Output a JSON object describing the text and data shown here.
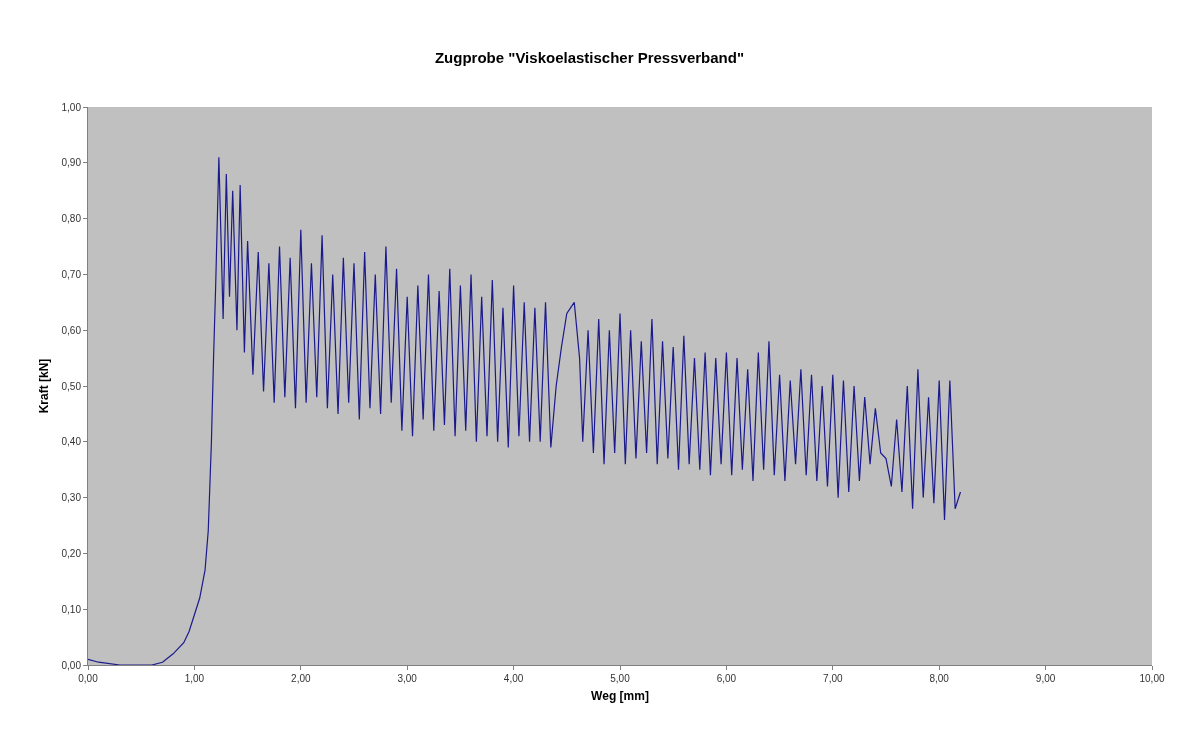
{
  "chart_data": {
    "type": "line",
    "title": "Zugprobe \"Viskoelastischer Pressverband\"",
    "xlabel": "Weg [mm]",
    "ylabel": "Kraft [kN]",
    "x": [
      0,
      0.1,
      0.3,
      0.6,
      0.7,
      0.8,
      0.9,
      0.95,
      1.0,
      1.05,
      1.1,
      1.13,
      1.16,
      1.18,
      1.2,
      1.23,
      1.27,
      1.3,
      1.33,
      1.36,
      1.4,
      1.43,
      1.47,
      1.5,
      1.55,
      1.6,
      1.65,
      1.7,
      1.75,
      1.8,
      1.85,
      1.9,
      1.95,
      2.0,
      2.05,
      2.1,
      2.15,
      2.2,
      2.25,
      2.3,
      2.35,
      2.4,
      2.45,
      2.5,
      2.55,
      2.6,
      2.65,
      2.7,
      2.75,
      2.8,
      2.85,
      2.9,
      2.95,
      3.0,
      3.05,
      3.1,
      3.15,
      3.2,
      3.25,
      3.3,
      3.35,
      3.4,
      3.45,
      3.5,
      3.55,
      3.6,
      3.65,
      3.7,
      3.75,
      3.8,
      3.85,
      3.9,
      3.95,
      4.0,
      4.05,
      4.1,
      4.15,
      4.2,
      4.25,
      4.3,
      4.35,
      4.4,
      4.45,
      4.5,
      4.57,
      4.62,
      4.65,
      4.7,
      4.75,
      4.8,
      4.85,
      4.9,
      4.95,
      5.0,
      5.05,
      5.1,
      5.15,
      5.2,
      5.25,
      5.3,
      5.35,
      5.4,
      5.45,
      5.5,
      5.55,
      5.6,
      5.65,
      5.7,
      5.75,
      5.8,
      5.85,
      5.9,
      5.95,
      6.0,
      6.05,
      6.1,
      6.15,
      6.2,
      6.25,
      6.3,
      6.35,
      6.4,
      6.45,
      6.5,
      6.55,
      6.6,
      6.65,
      6.7,
      6.75,
      6.8,
      6.85,
      6.9,
      6.95,
      7.0,
      7.05,
      7.1,
      7.15,
      7.2,
      7.25,
      7.3,
      7.35,
      7.4,
      7.45,
      7.5,
      7.55,
      7.6,
      7.65,
      7.7,
      7.75,
      7.8,
      7.85,
      7.9,
      7.95,
      8.0,
      8.05,
      8.1,
      8.15,
      8.2
    ],
    "series": [
      {
        "color": "#1a1a8c",
        "values": [
          0.01,
          0.005,
          0,
          0,
          0.005,
          0.02,
          0.04,
          0.06,
          0.09,
          0.12,
          0.17,
          0.24,
          0.4,
          0.55,
          0.68,
          0.91,
          0.62,
          0.88,
          0.66,
          0.85,
          0.6,
          0.86,
          0.56,
          0.76,
          0.52,
          0.74,
          0.49,
          0.72,
          0.47,
          0.75,
          0.48,
          0.73,
          0.46,
          0.78,
          0.47,
          0.72,
          0.48,
          0.77,
          0.46,
          0.7,
          0.45,
          0.73,
          0.47,
          0.72,
          0.44,
          0.74,
          0.46,
          0.7,
          0.45,
          0.75,
          0.47,
          0.71,
          0.42,
          0.66,
          0.41,
          0.68,
          0.44,
          0.7,
          0.42,
          0.67,
          0.43,
          0.71,
          0.41,
          0.68,
          0.42,
          0.7,
          0.4,
          0.66,
          0.41,
          0.69,
          0.4,
          0.64,
          0.39,
          0.68,
          0.41,
          0.65,
          0.4,
          0.64,
          0.4,
          0.65,
          0.39,
          0.5,
          0.57,
          0.63,
          0.65,
          0.55,
          0.4,
          0.6,
          0.38,
          0.62,
          0.36,
          0.6,
          0.38,
          0.63,
          0.36,
          0.6,
          0.37,
          0.58,
          0.38,
          0.62,
          0.36,
          0.58,
          0.37,
          0.57,
          0.35,
          0.59,
          0.36,
          0.55,
          0.35,
          0.56,
          0.34,
          0.55,
          0.36,
          0.56,
          0.34,
          0.55,
          0.35,
          0.53,
          0.33,
          0.56,
          0.35,
          0.58,
          0.34,
          0.52,
          0.33,
          0.51,
          0.36,
          0.53,
          0.34,
          0.52,
          0.33,
          0.5,
          0.32,
          0.52,
          0.3,
          0.51,
          0.31,
          0.5,
          0.33,
          0.48,
          0.36,
          0.46,
          0.38,
          0.37,
          0.32,
          0.44,
          0.31,
          0.5,
          0.28,
          0.53,
          0.3,
          0.48,
          0.29,
          0.51,
          0.26,
          0.51,
          0.28,
          0.31
        ]
      }
    ],
    "xlim": [
      0,
      10
    ],
    "xticks": [
      {
        "value": 0,
        "label": "0,00"
      },
      {
        "value": 1,
        "label": "1,00"
      },
      {
        "value": 2,
        "label": "2,00"
      },
      {
        "value": 3,
        "label": "3,00"
      },
      {
        "value": 4,
        "label": "4,00"
      },
      {
        "value": 5,
        "label": "5,00"
      },
      {
        "value": 6,
        "label": "6,00"
      },
      {
        "value": 7,
        "label": "7,00"
      },
      {
        "value": 8,
        "label": "8,00"
      },
      {
        "value": 9,
        "label": "9,00"
      },
      {
        "value": 10,
        "label": "10,00"
      }
    ],
    "ylim": [
      0,
      1
    ],
    "yticks": [
      {
        "value": 0,
        "label": "0,00"
      },
      {
        "value": 0.1,
        "label": "0,10"
      },
      {
        "value": 0.2,
        "label": "0,20"
      },
      {
        "value": 0.3,
        "label": "0,30"
      },
      {
        "value": 0.4,
        "label": "0,40"
      },
      {
        "value": 0.5,
        "label": "0,50"
      },
      {
        "value": 0.6,
        "label": "0,60"
      },
      {
        "value": 0.7,
        "label": "0,70"
      },
      {
        "value": 0.8,
        "label": "0,80"
      },
      {
        "value": 0.9,
        "label": "0,90"
      },
      {
        "value": 1,
        "label": "1,00"
      }
    ],
    "marker": "none",
    "line_style": "solid"
  }
}
